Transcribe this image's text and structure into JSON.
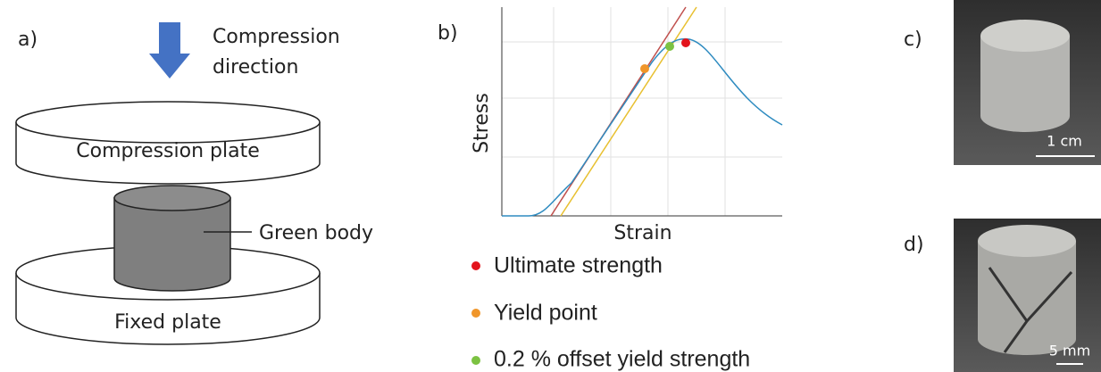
{
  "panel_a": {
    "label": "a)",
    "direction_lines": [
      "Compression",
      "direction"
    ],
    "top_plate": "Compression plate",
    "body": "Green body",
    "bottom_plate": "Fixed plate"
  },
  "panel_b": {
    "label": "b)",
    "y_axis": "Stress",
    "x_axis": "Strain",
    "legend": [
      {
        "name": "Ultimate strength",
        "color": "#e3141c"
      },
      {
        "name": "Yield point",
        "color": "#f0962a"
      },
      {
        "name": "0.2 % offset yield strength",
        "color": "#7cc242"
      }
    ]
  },
  "panel_c": {
    "label": "c)",
    "scale": "1 cm"
  },
  "panel_d": {
    "label": "d)",
    "scale": "5 mm"
  }
}
